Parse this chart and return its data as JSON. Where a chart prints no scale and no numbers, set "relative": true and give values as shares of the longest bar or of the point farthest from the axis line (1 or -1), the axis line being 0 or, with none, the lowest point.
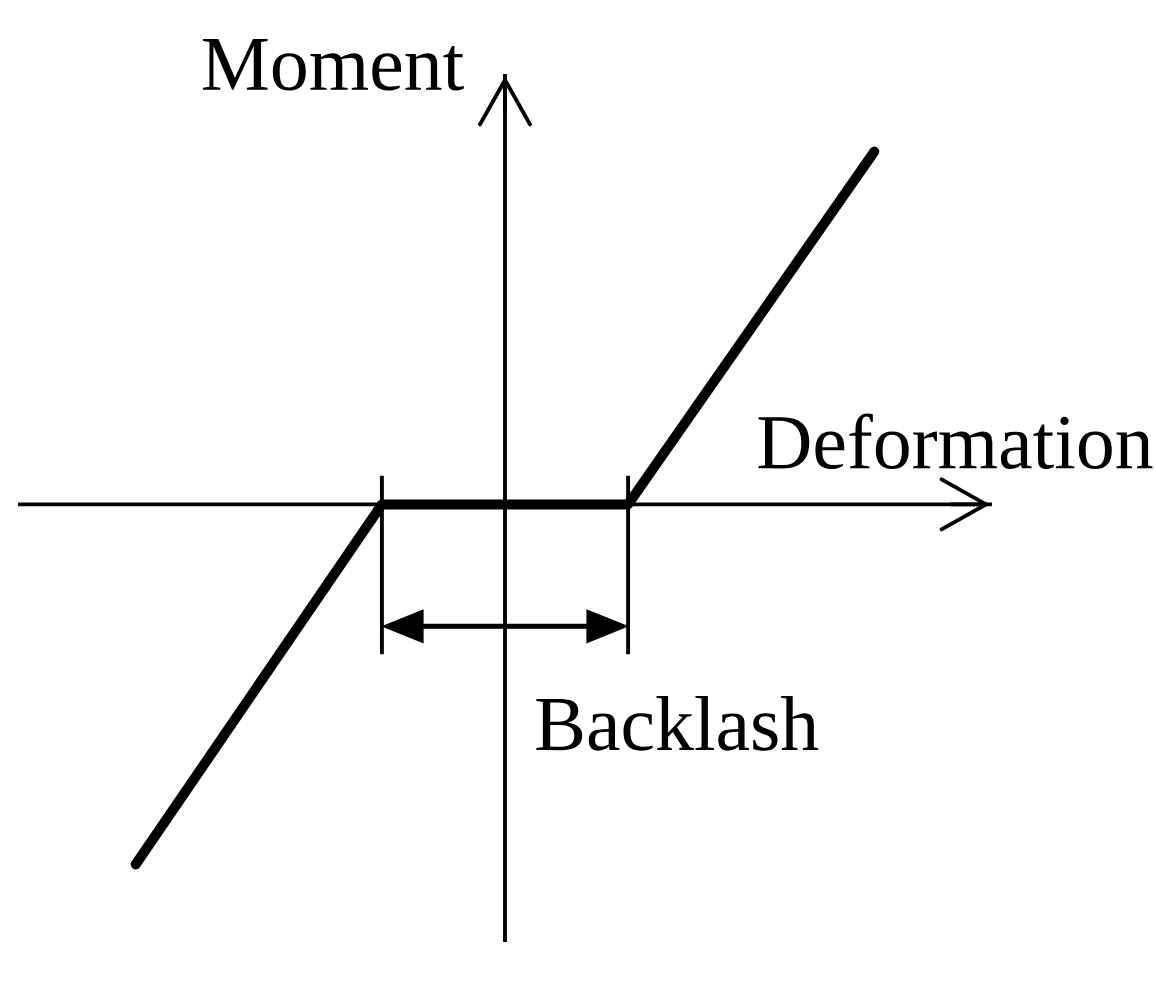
{
  "chart_data": {
    "type": "line",
    "categories": [
      null,
      null,
      null,
      null
    ],
    "relative": true,
    "series": [
      {
        "color": "#000000",
        "values": [
          -1,
          0,
          0,
          0.98
        ]
      }
    ],
    "xlabel": "Deformation",
    "ylabel": "Moment",
    "annotations": [
      "Backlash"
    ],
    "grid": false,
    "marker": "none",
    "line_style": "solid"
  }
}
